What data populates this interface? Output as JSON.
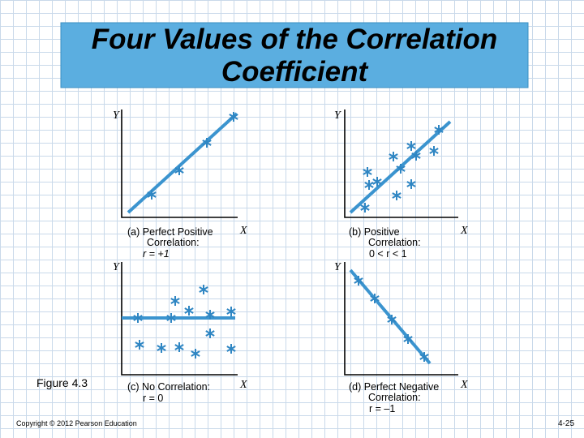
{
  "header": {
    "title": [
      "Four Values of the Correlation",
      "Coefficient"
    ]
  },
  "panels": [
    {
      "y_label": "Y",
      "x_label": "X",
      "caption": [
        "(a) Perfect Positive",
        "Correlation:",
        "r = +1"
      ]
    },
    {
      "y_label": "Y",
      "x_label": "X",
      "caption": [
        "(b) Positive",
        "Correlation:",
        "0 < r < 1"
      ]
    },
    {
      "y_label": "Y",
      "x_label": "X",
      "caption": [
        "(c) No Correlation:",
        "r = 0"
      ]
    },
    {
      "y_label": "Y",
      "x_label": "X",
      "caption": [
        "(d) Perfect Negative",
        "Correlation:",
        "r = –1"
      ]
    }
  ],
  "figure_label": "Figure 4.3",
  "footer": {
    "copyright": "Copyright © 2012 Pearson Education",
    "page": "4-25"
  }
}
